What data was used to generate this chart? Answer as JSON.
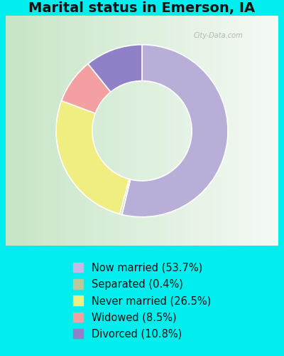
{
  "title": "Marital status in Emerson, IA",
  "title_fontsize": 14,
  "title_fontweight": "bold",
  "background_cyan": "#00EEEE",
  "slices": [
    {
      "label": "Now married (53.7%)",
      "value": 53.7,
      "color": "#b8aed8"
    },
    {
      "label": "Separated (0.4%)",
      "value": 0.4,
      "color": "#c8d8a8"
    },
    {
      "label": "Never married (26.5%)",
      "value": 26.5,
      "color": "#f0ee80"
    },
    {
      "label": "Widowed (8.5%)",
      "value": 8.5,
      "color": "#f4a0a0"
    },
    {
      "label": "Divorced (10.8%)",
      "value": 10.8,
      "color": "#9080c8"
    }
  ],
  "legend_colors": [
    "#c8b8e8",
    "#b8c8a0",
    "#f0ee80",
    "#f4a0a0",
    "#9080c8"
  ],
  "legend_labels": [
    "Now married (53.7%)",
    "Separated (0.4%)",
    "Never married (26.5%)",
    "Widowed (8.5%)",
    "Divorced (10.8%)"
  ],
  "watermark": "City-Data.com"
}
